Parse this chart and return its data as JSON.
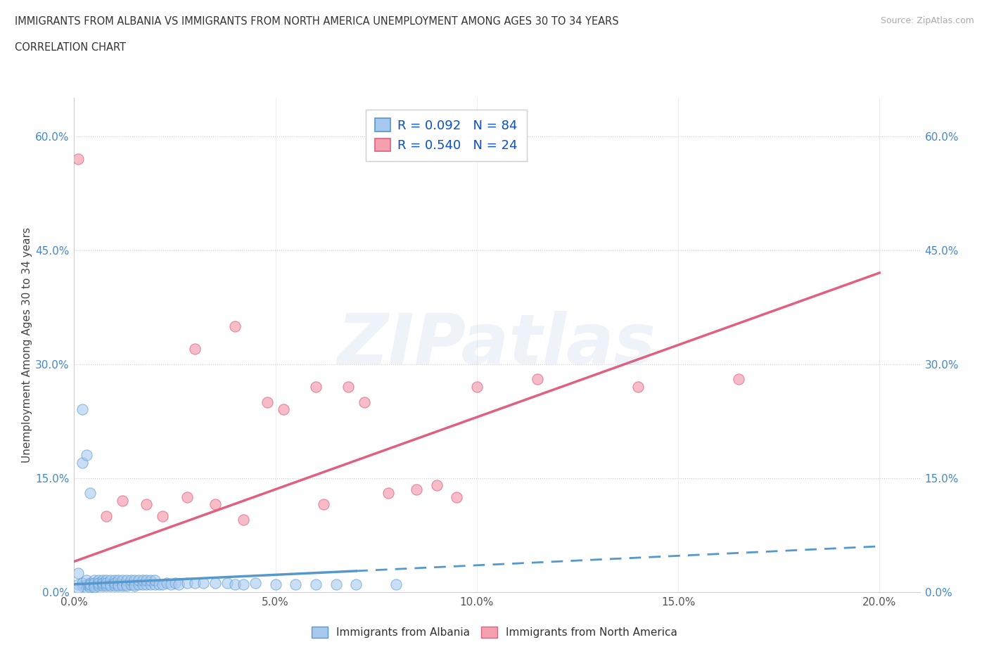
{
  "title_line1": "IMMIGRANTS FROM ALBANIA VS IMMIGRANTS FROM NORTH AMERICA UNEMPLOYMENT AMONG AGES 30 TO 34 YEARS",
  "title_line2": "CORRELATION CHART",
  "source_text": "Source: ZipAtlas.com",
  "ylabel": "Unemployment Among Ages 30 to 34 years",
  "xlabel_ticks": [
    "0.0%",
    "5.0%",
    "10.0%",
    "15.0%",
    "20.0%"
  ],
  "ylabel_ticks_left": [
    "0.0%",
    "15.0%",
    "30.0%",
    "45.0%",
    "60.0%"
  ],
  "ylabel_ticks_right": [
    "60.0%",
    "45.0%",
    "30.0%",
    "15.0%",
    "0.0%"
  ],
  "xlim": [
    0.0,
    0.21
  ],
  "ylim": [
    0.0,
    0.65
  ],
  "color_albania": "#a8c8f0",
  "color_north_america": "#f4a0b0",
  "color_trend_albania": "#5599cc",
  "color_trend_north_america": "#e06080",
  "label_albania": "Immigrants from Albania",
  "label_north_america": "Immigrants from North America",
  "legend_label1": "R = 0.092   N = 84",
  "legend_label2": "R = 0.540   N = 24",
  "watermark": "ZIPatlas",
  "albania_x": [
    0.001,
    0.002,
    0.002,
    0.003,
    0.003,
    0.003,
    0.004,
    0.004,
    0.004,
    0.004,
    0.005,
    0.005,
    0.005,
    0.005,
    0.005,
    0.006,
    0.006,
    0.006,
    0.006,
    0.007,
    0.007,
    0.007,
    0.007,
    0.008,
    0.008,
    0.008,
    0.008,
    0.009,
    0.009,
    0.009,
    0.01,
    0.01,
    0.01,
    0.01,
    0.011,
    0.011,
    0.011,
    0.012,
    0.012,
    0.012,
    0.013,
    0.013,
    0.013,
    0.014,
    0.014,
    0.015,
    0.015,
    0.015,
    0.016,
    0.016,
    0.017,
    0.017,
    0.018,
    0.018,
    0.019,
    0.019,
    0.02,
    0.02,
    0.021,
    0.022,
    0.023,
    0.024,
    0.025,
    0.026,
    0.028,
    0.03,
    0.032,
    0.035,
    0.038,
    0.04,
    0.042,
    0.045,
    0.05,
    0.055,
    0.06,
    0.065,
    0.07,
    0.08,
    0.001,
    0.001,
    0.002,
    0.002,
    0.003,
    0.004
  ],
  "albania_y": [
    0.01,
    0.008,
    0.012,
    0.005,
    0.01,
    0.015,
    0.008,
    0.012,
    0.006,
    0.01,
    0.01,
    0.015,
    0.008,
    0.012,
    0.006,
    0.01,
    0.015,
    0.008,
    0.012,
    0.01,
    0.015,
    0.008,
    0.012,
    0.01,
    0.015,
    0.008,
    0.012,
    0.01,
    0.015,
    0.008,
    0.01,
    0.015,
    0.008,
    0.012,
    0.01,
    0.015,
    0.008,
    0.01,
    0.015,
    0.008,
    0.01,
    0.015,
    0.008,
    0.01,
    0.015,
    0.01,
    0.015,
    0.008,
    0.01,
    0.015,
    0.01,
    0.015,
    0.01,
    0.015,
    0.01,
    0.015,
    0.01,
    0.015,
    0.01,
    0.01,
    0.012,
    0.01,
    0.012,
    0.01,
    0.012,
    0.012,
    0.012,
    0.012,
    0.012,
    0.01,
    0.01,
    0.012,
    0.01,
    0.01,
    0.01,
    0.01,
    0.01,
    0.01,
    0.005,
    0.025,
    0.24,
    0.17,
    0.18,
    0.13
  ],
  "north_america_x": [
    0.001,
    0.008,
    0.012,
    0.018,
    0.022,
    0.028,
    0.03,
    0.035,
    0.04,
    0.042,
    0.048,
    0.052,
    0.06,
    0.062,
    0.068,
    0.072,
    0.078,
    0.085,
    0.09,
    0.095,
    0.1,
    0.115,
    0.14,
    0.165
  ],
  "north_america_y": [
    0.57,
    0.1,
    0.12,
    0.115,
    0.1,
    0.125,
    0.32,
    0.115,
    0.35,
    0.095,
    0.25,
    0.24,
    0.27,
    0.115,
    0.27,
    0.25,
    0.13,
    0.135,
    0.14,
    0.125,
    0.27,
    0.28,
    0.27,
    0.28
  ],
  "alb_trend_x0": 0.0,
  "alb_trend_x1": 0.2,
  "alb_trend_y0": 0.01,
  "alb_trend_y1": 0.06,
  "na_trend_x0": 0.0,
  "na_trend_x1": 0.2,
  "na_trend_y0": 0.04,
  "na_trend_y1": 0.42
}
